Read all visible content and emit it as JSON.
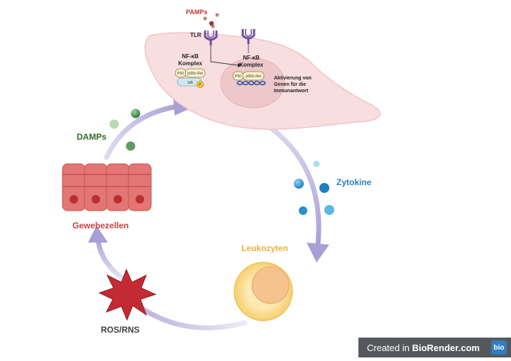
{
  "labels": {
    "pamps": "PAMPs",
    "tlr": "TLR",
    "nfkb_cyto": [
      "NF-κB",
      "Komplex"
    ],
    "nfkb_nuc": [
      "NF-κB",
      "Komplex"
    ],
    "p50": "P50",
    "p65": "p65/c-Rel",
    "ikb": "IκB",
    "activation": [
      "Aktivierung von",
      "Genen für die",
      "Immunantwort"
    ],
    "damps": "DAMPs",
    "zytokine": "Zytokine",
    "gewebezellen": "Gewebezellen",
    "leukozyten": "Leukozyten",
    "ros_rns": "ROS/RNS"
  },
  "branding": {
    "prefix": "Created in ",
    "name": "BioRender.com",
    "logo": "bio"
  },
  "colors": {
    "pamps": "#c0392b",
    "damps": "#2e6b2e",
    "zytokine": "#2a82c9",
    "gewebezellen": "#c9413f",
    "leukozyten": "#e8b23a",
    "ros_rns": "#404040",
    "cell": "#f8dede",
    "arrow": "#b9b2dc"
  }
}
